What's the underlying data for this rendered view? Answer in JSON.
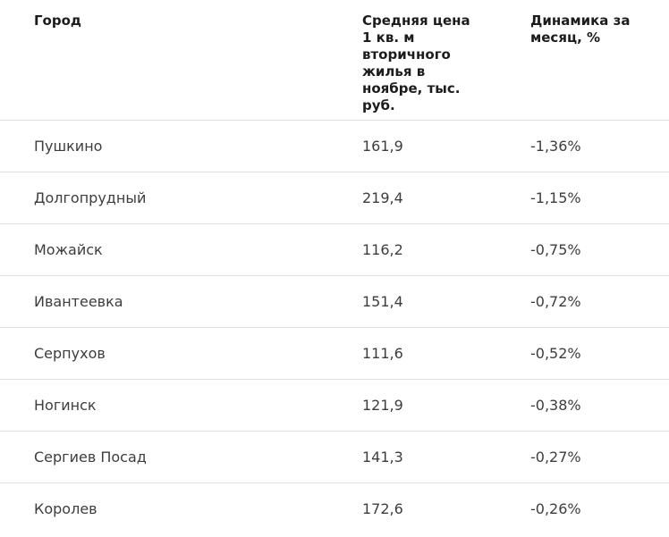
{
  "table": {
    "columns": [
      {
        "id": "city",
        "label": "Город"
      },
      {
        "id": "price",
        "label": "Средняя цена\n1 кв. м\nвторичного\nжилья в\nноябре, тыс.\nруб."
      },
      {
        "id": "dynamics",
        "label": "Динамика за\nмесяц, %"
      }
    ],
    "rows": [
      {
        "city": "Пушкино",
        "price": "161,9",
        "dynamics": "-1,36%"
      },
      {
        "city": "Долгопрудный",
        "price": "219,4",
        "dynamics": "-1,15%"
      },
      {
        "city": "Можайск",
        "price": "116,2",
        "dynamics": "-0,75%"
      },
      {
        "city": "Ивантеевка",
        "price": "151,4",
        "dynamics": "-0,72%"
      },
      {
        "city": "Серпухов",
        "price": "111,6",
        "dynamics": "-0,52%"
      },
      {
        "city": "Ногинск",
        "price": "121,9",
        "dynamics": "-0,38%"
      },
      {
        "city": "Сергиев Посад",
        "price": "141,3",
        "dynamics": "-0,27%"
      },
      {
        "city": "Королев",
        "price": "172,6",
        "dynamics": "-0,26%"
      }
    ]
  },
  "colors": {
    "background": "#ffffff",
    "divider": "#e0e0e0",
    "header_text": "#1c1c1c",
    "body_text": "#3d3d3d"
  },
  "chart_data": {
    "type": "table",
    "title": "Средняя цена 1 кв. м вторичного жилья в ноябре и динамика за месяц",
    "columns": [
      "Город",
      "Средняя цена 1 кв. м вторичного жилья в ноябре, тыс. руб.",
      "Динамика за месяц, %"
    ],
    "rows": [
      [
        "Пушкино",
        161.9,
        -1.36
      ],
      [
        "Долгопрудный",
        219.4,
        -1.15
      ],
      [
        "Можайск",
        116.2,
        -0.75
      ],
      [
        "Ивантеевка",
        151.4,
        -0.72
      ],
      [
        "Серпухов",
        111.6,
        -0.52
      ],
      [
        "Ногинск",
        121.9,
        -0.38
      ],
      [
        "Сергиев Посад",
        141.3,
        -0.27
      ],
      [
        "Королев",
        172.6,
        -0.26
      ]
    ],
    "layout": {
      "grid": "horizontal-row-dividers",
      "header_position": "top",
      "alignment": "left"
    }
  }
}
